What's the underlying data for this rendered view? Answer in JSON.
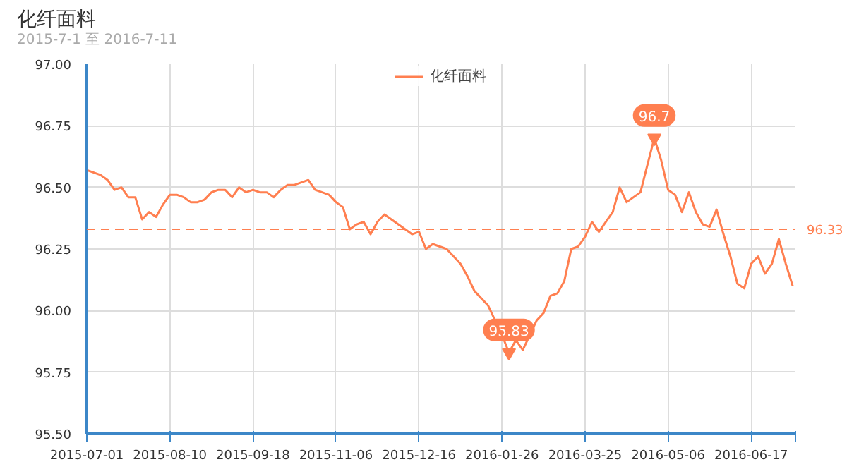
{
  "chart_data": {
    "type": "line",
    "title": "化纤面料",
    "subtitle": "2015-7-1 至 2016-7-11",
    "categories": [
      "2015-07-01",
      null,
      null,
      null,
      null,
      null,
      null,
      null,
      null,
      null,
      null,
      null,
      "2015-08-10",
      null,
      null,
      null,
      null,
      null,
      null,
      null,
      null,
      null,
      null,
      null,
      "2015-09-18",
      null,
      null,
      null,
      null,
      null,
      null,
      null,
      null,
      null,
      null,
      null,
      "2015-11-06",
      null,
      null,
      null,
      null,
      null,
      null,
      null,
      null,
      null,
      null,
      null,
      "2015-12-16",
      null,
      null,
      null,
      null,
      null,
      null,
      null,
      null,
      null,
      null,
      null,
      "2016-01-26",
      null,
      null,
      null,
      null,
      null,
      null,
      null,
      null,
      null,
      null,
      null,
      "2016-03-25",
      null,
      null,
      null,
      null,
      null,
      null,
      null,
      null,
      null,
      null,
      null,
      "2016-05-06",
      null,
      null,
      null,
      null,
      null,
      null,
      null,
      null,
      null,
      null,
      null,
      "2016-06-17",
      null,
      null,
      null,
      null,
      null,
      null
    ],
    "series": [
      {
        "name": "化纤面料",
        "color": "#ff7f50",
        "values": [
          96.57,
          96.56,
          96.55,
          96.53,
          96.49,
          96.5,
          96.46,
          96.46,
          96.37,
          96.4,
          96.38,
          96.43,
          96.47,
          96.47,
          96.46,
          96.44,
          96.44,
          96.45,
          96.48,
          96.49,
          96.49,
          96.46,
          96.5,
          96.48,
          96.49,
          96.48,
          96.48,
          96.46,
          96.49,
          96.51,
          96.51,
          96.52,
          96.53,
          96.49,
          96.48,
          96.47,
          96.44,
          96.42,
          96.33,
          96.35,
          96.36,
          96.31,
          96.36,
          96.39,
          96.37,
          96.35,
          96.33,
          96.31,
          96.32,
          96.25,
          96.27,
          96.26,
          96.25,
          96.22,
          96.19,
          96.14,
          96.08,
          96.05,
          96.02,
          95.96,
          95.9,
          95.83,
          95.88,
          95.84,
          95.9,
          95.96,
          95.99,
          96.06,
          96.07,
          96.12,
          96.25,
          96.26,
          96.3,
          96.36,
          96.32,
          96.36,
          96.4,
          96.5,
          96.44,
          96.46,
          96.48,
          96.59,
          96.7,
          96.61,
          96.49,
          96.47,
          96.4,
          96.48,
          96.4,
          96.35,
          96.34,
          96.41,
          96.31,
          96.22,
          96.11,
          96.09,
          96.19,
          96.22,
          96.15,
          96.19,
          96.29,
          96.19,
          96.1
        ]
      }
    ],
    "ylim": [
      95.5,
      97.0
    ],
    "yticks": [
      {
        "value": 95.5,
        "label": "95.50"
      },
      {
        "value": 95.75,
        "label": "95.75"
      },
      {
        "value": 96.0,
        "label": "96.00"
      },
      {
        "value": 96.25,
        "label": "96.25"
      },
      {
        "value": 96.5,
        "label": "96.50"
      },
      {
        "value": 96.75,
        "label": "96.75"
      },
      {
        "value": 97.0,
        "label": "97.00"
      }
    ],
    "ref_lines": [
      {
        "axis": "y",
        "value": 96.33,
        "label": "96.33",
        "color": "#ff7f50",
        "line_style": "dashed"
      }
    ],
    "annotations": [
      {
        "text": "96.7",
        "y": 96.7
      },
      {
        "text": "95.83",
        "y": 95.83
      }
    ],
    "grid": true,
    "legend": "top"
  }
}
